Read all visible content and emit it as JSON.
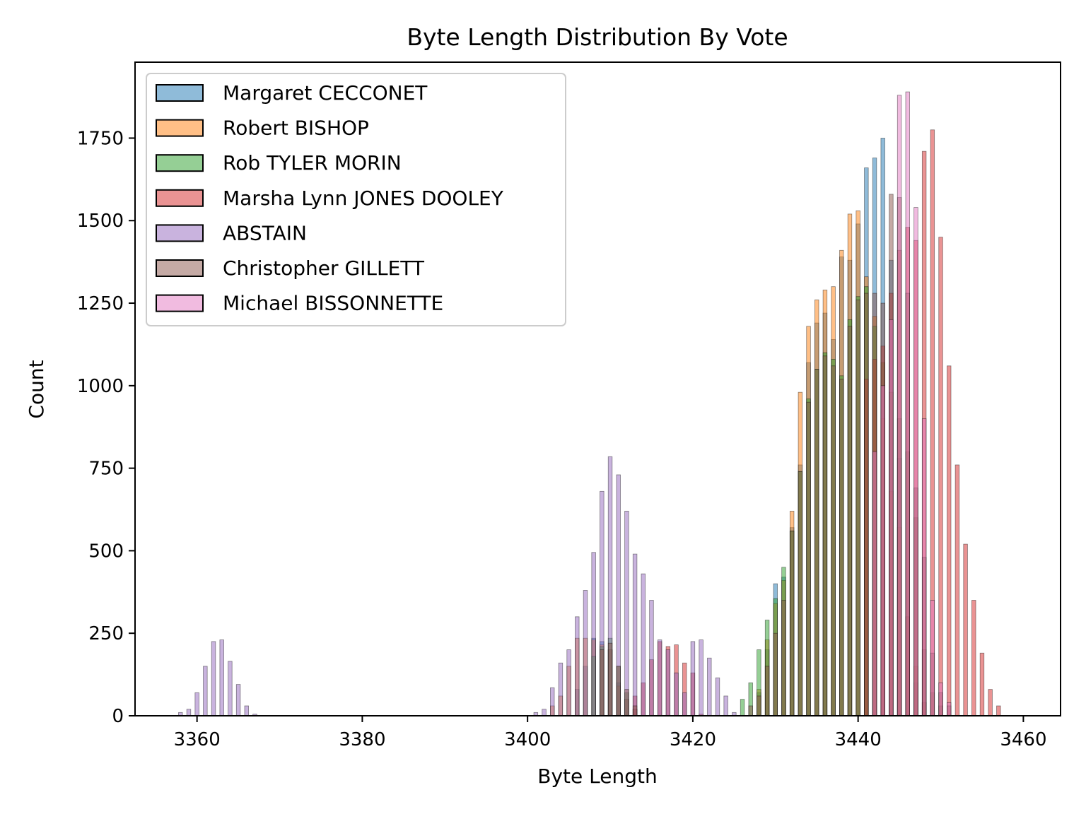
{
  "chart_data": {
    "type": "bar",
    "title": "Byte Length Distribution By Vote",
    "xlabel": "Byte Length",
    "ylabel": "Count",
    "xlim": [
      3352.5,
      3464.5
    ],
    "ylim": [
      0,
      1980
    ],
    "xticks": [
      3360,
      3380,
      3400,
      3420,
      3440,
      3460
    ],
    "yticks": [
      0,
      250,
      500,
      750,
      1000,
      1250,
      1500,
      1750
    ],
    "legend_position": "top-left",
    "grid": false,
    "bar_opacity": 0.5,
    "series": [
      {
        "name": "Margaret CECCONET",
        "color": "#1f77b4",
        "points": [
          [
            3406,
            80
          ],
          [
            3407,
            150
          ],
          [
            3408,
            235
          ],
          [
            3409,
            225
          ],
          [
            3410,
            200
          ],
          [
            3411,
            100
          ],
          [
            3412,
            50
          ],
          [
            3413,
            20
          ],
          [
            3428,
            70
          ],
          [
            3429,
            200
          ],
          [
            3430,
            400
          ],
          [
            3431,
            420
          ],
          [
            3432,
            570
          ],
          [
            3433,
            760
          ],
          [
            3434,
            1070
          ],
          [
            3435,
            1190
          ],
          [
            3436,
            1220
          ],
          [
            3437,
            1140
          ],
          [
            3438,
            1390
          ],
          [
            3439,
            1380
          ],
          [
            3440,
            1490
          ],
          [
            3441,
            1660
          ],
          [
            3442,
            1690
          ],
          [
            3443,
            1750
          ],
          [
            3444,
            1380
          ],
          [
            3445,
            780
          ],
          [
            3446,
            300
          ],
          [
            3447,
            100
          ],
          [
            3448,
            40
          ]
        ]
      },
      {
        "name": "Robert BISHOP",
        "color": "#ff7f0e",
        "points": [
          [
            3403,
            30
          ],
          [
            3404,
            60
          ],
          [
            3405,
            150
          ],
          [
            3406,
            235
          ],
          [
            3407,
            235
          ],
          [
            3408,
            230
          ],
          [
            3409,
            215
          ],
          [
            3410,
            200
          ],
          [
            3411,
            90
          ],
          [
            3412,
            50
          ],
          [
            3413,
            20
          ],
          [
            3428,
            80
          ],
          [
            3429,
            230
          ],
          [
            3430,
            340
          ],
          [
            3431,
            410
          ],
          [
            3432,
            620
          ],
          [
            3433,
            980
          ],
          [
            3434,
            1180
          ],
          [
            3435,
            1260
          ],
          [
            3436,
            1290
          ],
          [
            3437,
            1300
          ],
          [
            3438,
            1410
          ],
          [
            3439,
            1520
          ],
          [
            3440,
            1530
          ],
          [
            3441,
            1330
          ],
          [
            3442,
            1210
          ],
          [
            3443,
            900
          ],
          [
            3444,
            680
          ],
          [
            3445,
            570
          ],
          [
            3446,
            300
          ],
          [
            3447,
            150
          ],
          [
            3448,
            40
          ]
        ]
      },
      {
        "name": "Rob TYLER MORIN",
        "color": "#2ca02c",
        "points": [
          [
            3408,
            180
          ],
          [
            3409,
            210
          ],
          [
            3410,
            235
          ],
          [
            3411,
            150
          ],
          [
            3412,
            70
          ],
          [
            3426,
            50
          ],
          [
            3427,
            100
          ],
          [
            3428,
            200
          ],
          [
            3429,
            290
          ],
          [
            3430,
            355
          ],
          [
            3431,
            450
          ],
          [
            3432,
            560
          ],
          [
            3433,
            740
          ],
          [
            3434,
            960
          ],
          [
            3435,
            1050
          ],
          [
            3436,
            1100
          ],
          [
            3437,
            1080
          ],
          [
            3438,
            1030
          ],
          [
            3439,
            1200
          ],
          [
            3440,
            1270
          ],
          [
            3441,
            1300
          ],
          [
            3442,
            1180
          ],
          [
            3443,
            1070
          ],
          [
            3444,
            980
          ],
          [
            3445,
            900
          ],
          [
            3446,
            800
          ],
          [
            3447,
            600
          ],
          [
            3448,
            200
          ],
          [
            3449,
            70
          ],
          [
            3450,
            30
          ]
        ]
      },
      {
        "name": "Marsha Lynn JONES DOOLEY",
        "color": "#d62728",
        "points": [
          [
            3413,
            60
          ],
          [
            3414,
            100
          ],
          [
            3415,
            170
          ],
          [
            3416,
            225
          ],
          [
            3417,
            210
          ],
          [
            3418,
            215
          ],
          [
            3419,
            160
          ],
          [
            3420,
            130
          ],
          [
            3421,
            5
          ],
          [
            3441,
            1020
          ],
          [
            3442,
            1080
          ],
          [
            3443,
            1120
          ],
          [
            3444,
            1280
          ],
          [
            3445,
            1410
          ],
          [
            3446,
            1480
          ],
          [
            3447,
            1440
          ],
          [
            3448,
            1710
          ],
          [
            3449,
            1775
          ],
          [
            3450,
            1450
          ],
          [
            3451,
            1060
          ],
          [
            3452,
            760
          ],
          [
            3453,
            520
          ],
          [
            3454,
            350
          ],
          [
            3455,
            190
          ],
          [
            3456,
            80
          ],
          [
            3457,
            30
          ]
        ]
      },
      {
        "name": "ABSTAIN",
        "color": "#9467bd",
        "points": [
          [
            3358,
            10
          ],
          [
            3359,
            20
          ],
          [
            3360,
            70
          ],
          [
            3361,
            150
          ],
          [
            3362,
            225
          ],
          [
            3363,
            230
          ],
          [
            3364,
            165
          ],
          [
            3365,
            95
          ],
          [
            3366,
            30
          ],
          [
            3367,
            5
          ],
          [
            3401,
            10
          ],
          [
            3402,
            20
          ],
          [
            3403,
            85
          ],
          [
            3404,
            160
          ],
          [
            3405,
            200
          ],
          [
            3406,
            300
          ],
          [
            3407,
            380
          ],
          [
            3408,
            495
          ],
          [
            3409,
            680
          ],
          [
            3410,
            785
          ],
          [
            3411,
            730
          ],
          [
            3412,
            620
          ],
          [
            3413,
            490
          ],
          [
            3414,
            430
          ],
          [
            3415,
            350
          ],
          [
            3416,
            230
          ],
          [
            3417,
            200
          ],
          [
            3418,
            130
          ],
          [
            3419,
            70
          ],
          [
            3420,
            225
          ],
          [
            3421,
            230
          ],
          [
            3422,
            175
          ],
          [
            3423,
            115
          ],
          [
            3424,
            60
          ],
          [
            3425,
            10
          ]
        ]
      },
      {
        "name": "Christopher GILLETT",
        "color": "#8c564b",
        "points": [
          [
            3409,
            200
          ],
          [
            3410,
            220
          ],
          [
            3411,
            150
          ],
          [
            3412,
            80
          ],
          [
            3413,
            30
          ],
          [
            3427,
            30
          ],
          [
            3428,
            60
          ],
          [
            3429,
            150
          ],
          [
            3430,
            250
          ],
          [
            3431,
            350
          ],
          [
            3432,
            560
          ],
          [
            3433,
            740
          ],
          [
            3434,
            950
          ],
          [
            3435,
            1050
          ],
          [
            3436,
            1090
          ],
          [
            3437,
            1060
          ],
          [
            3438,
            1020
          ],
          [
            3439,
            1180
          ],
          [
            3440,
            1260
          ],
          [
            3441,
            1280
          ],
          [
            3442,
            1280
          ],
          [
            3443,
            1250
          ],
          [
            3444,
            1580
          ],
          [
            3445,
            1570
          ],
          [
            3446,
            1280
          ],
          [
            3447,
            690
          ],
          [
            3448,
            480
          ],
          [
            3449,
            190
          ],
          [
            3450,
            70
          ],
          [
            3451,
            30
          ]
        ]
      },
      {
        "name": "Michael BISSONNETTE",
        "color": "#e377c2",
        "points": [
          [
            3442,
            800
          ],
          [
            3443,
            1000
          ],
          [
            3444,
            1200
          ],
          [
            3445,
            1880
          ],
          [
            3446,
            1890
          ],
          [
            3447,
            1540
          ],
          [
            3448,
            900
          ],
          [
            3449,
            350
          ],
          [
            3450,
            100
          ],
          [
            3451,
            40
          ]
        ]
      }
    ]
  }
}
